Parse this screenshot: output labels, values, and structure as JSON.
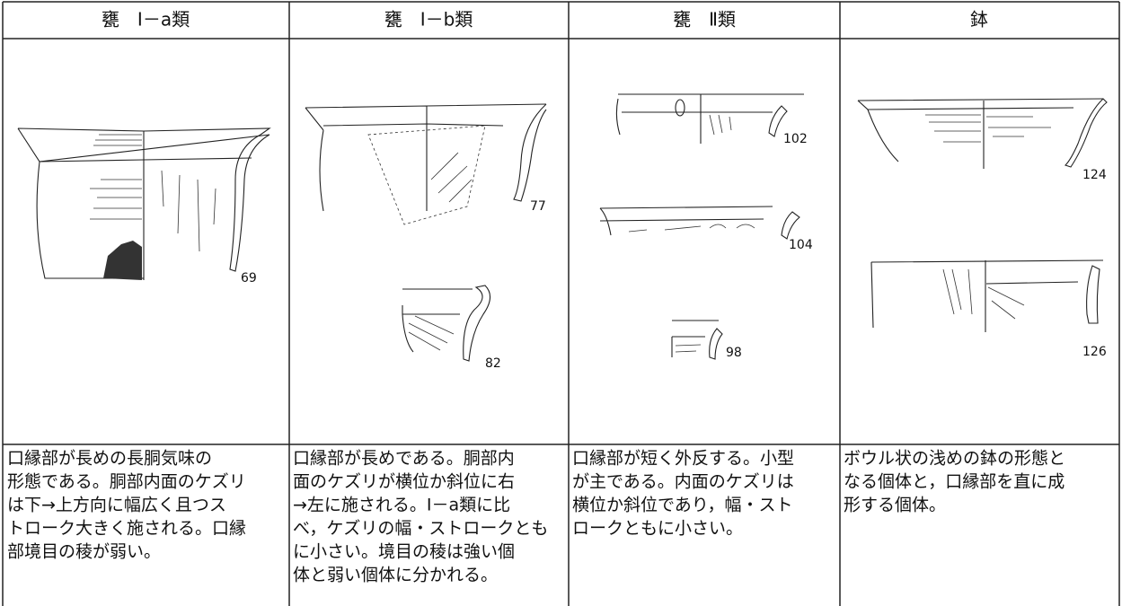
{
  "table": {
    "headers": [
      "甕　Ⅰ－a類",
      "甕　Ⅰ－b類",
      "甕　Ⅱ類",
      "鉢"
    ],
    "figures": [
      [
        "69"
      ],
      [
        "77",
        "82"
      ],
      [
        "102",
        "104",
        "98"
      ],
      [
        "124",
        "126"
      ]
    ],
    "descriptions": [
      [
        "口縁部が長めの長胴気味の",
        "形態である。胴部内面のケズリ",
        "は下→上方向に幅広く且つス",
        "トローク大きく施される。口縁",
        "部境目の稜が弱い。"
      ],
      [
        "口縁部が長めである。胴部内",
        "面のケズリが横位か斜位に右",
        "→左に施される。Ⅰ－a類に比",
        "べ，ケズリの幅・ストロークとも",
        "に小さい。境目の稜は強い個",
        "体と弱い個体に分かれる。"
      ],
      [
        "口縁部が短く外反する。小型",
        "が主である。内面のケズリは",
        "横位か斜位であり，幅・スト",
        "ロークともに小さい。"
      ],
      [
        "ボウル状の浅めの鉢の形態と",
        "なる個体と，口縁部を直に成",
        "形する個体。"
      ]
    ]
  }
}
